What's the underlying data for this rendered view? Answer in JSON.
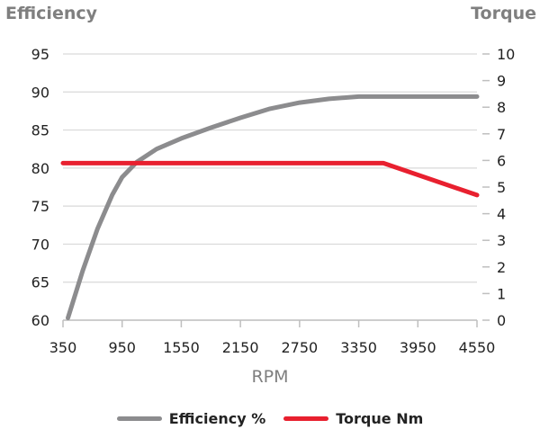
{
  "chart_data": {
    "type": "line",
    "xlabel": "RPM",
    "y_left_label": "Efficiency",
    "y_right_label": "Torque",
    "x_ticks": [
      350,
      950,
      1550,
      2150,
      2750,
      3350,
      3950,
      4550
    ],
    "xlim": [
      350,
      4550
    ],
    "y_left_ticks": [
      60,
      65,
      70,
      75,
      80,
      85,
      90,
      95
    ],
    "y_left_lim": [
      60,
      95
    ],
    "y_right_ticks": [
      0,
      1,
      2,
      3,
      4,
      5,
      6,
      7,
      8,
      9,
      10
    ],
    "y_right_lim": [
      0,
      10
    ],
    "grid": "horizontal",
    "legend_position": "bottom",
    "series": [
      {
        "name": "Efficiency %",
        "axis": "left",
        "color": "#8c8c8e",
        "x": [
          400,
          550,
          700,
          850,
          950,
          1100,
          1300,
          1550,
          1850,
          2150,
          2450,
          2750,
          3050,
          3350,
          3550,
          3950,
          4550
        ],
        "y": [
          60.3,
          66.5,
          72,
          76.5,
          78.8,
          80.8,
          82.5,
          83.9,
          85.3,
          86.6,
          87.8,
          88.6,
          89.1,
          89.4,
          89.4,
          89.4,
          89.4
        ]
      },
      {
        "name": "Torque Nm",
        "axis": "right",
        "color": "#e8202f",
        "x": [
          350,
          3600,
          4550
        ],
        "y": [
          5.9,
          5.9,
          4.7
        ]
      }
    ]
  }
}
